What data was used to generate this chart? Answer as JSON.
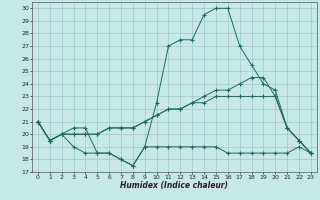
{
  "title": "",
  "xlabel": "Humidex (Indice chaleur)",
  "background_color": "#c8e8e8",
  "plot_bg_color": "#c8e8e8",
  "grid_color": "#a0c8c8",
  "line_color": "#1a6b5a",
  "xlim": [
    -0.5,
    23.5
  ],
  "ylim": [
    17,
    30.5
  ],
  "yticks": [
    17,
    18,
    19,
    20,
    21,
    22,
    23,
    24,
    25,
    26,
    27,
    28,
    29,
    30
  ],
  "xticks": [
    0,
    1,
    2,
    3,
    4,
    5,
    6,
    7,
    8,
    9,
    10,
    11,
    12,
    13,
    14,
    15,
    16,
    17,
    18,
    19,
    20,
    21,
    22,
    23
  ],
  "series": [
    {
      "x": [
        0,
        1,
        2,
        3,
        4,
        5,
        6,
        7,
        8,
        9,
        10,
        11,
        12,
        13,
        14,
        15,
        16,
        17,
        18,
        19,
        20,
        21,
        22,
        23
      ],
      "y": [
        21,
        19.5,
        20,
        20.5,
        20.5,
        18.5,
        18.5,
        18,
        17.5,
        19,
        22.5,
        27,
        27.5,
        27.5,
        29.5,
        30,
        30,
        27,
        25.5,
        24,
        23.5,
        20.5,
        19.5,
        18.5
      ]
    },
    {
      "x": [
        0,
        1,
        2,
        3,
        4,
        5,
        6,
        7,
        8,
        9,
        10,
        11,
        12,
        13,
        14,
        15,
        16,
        17,
        18,
        19,
        20,
        21,
        22,
        23
      ],
      "y": [
        21,
        19.5,
        20,
        19,
        18.5,
        18.5,
        18.5,
        18,
        17.5,
        19,
        19,
        19,
        19,
        19,
        19,
        19,
        18.5,
        18.5,
        18.5,
        18.5,
        18.5,
        18.5,
        19,
        18.5
      ]
    },
    {
      "x": [
        0,
        1,
        2,
        3,
        4,
        5,
        6,
        7,
        8,
        9,
        10,
        11,
        12,
        13,
        14,
        15,
        16,
        17,
        18,
        19,
        20,
        21,
        22,
        23
      ],
      "y": [
        21,
        19.5,
        20,
        20,
        20,
        20,
        20.5,
        20.5,
        20.5,
        21,
        21.5,
        22,
        22,
        22.5,
        22.5,
        23,
        23,
        23,
        23,
        23,
        23,
        20.5,
        19.5,
        18.5
      ]
    },
    {
      "x": [
        0,
        1,
        2,
        3,
        4,
        5,
        6,
        7,
        8,
        9,
        10,
        11,
        12,
        13,
        14,
        15,
        16,
        17,
        18,
        19,
        20,
        21,
        22,
        23
      ],
      "y": [
        21,
        19.5,
        20,
        20,
        20,
        20,
        20.5,
        20.5,
        20.5,
        21,
        21.5,
        22,
        22,
        22.5,
        23,
        23.5,
        23.5,
        24,
        24.5,
        24.5,
        23,
        20.5,
        19.5,
        18.5
      ]
    }
  ]
}
